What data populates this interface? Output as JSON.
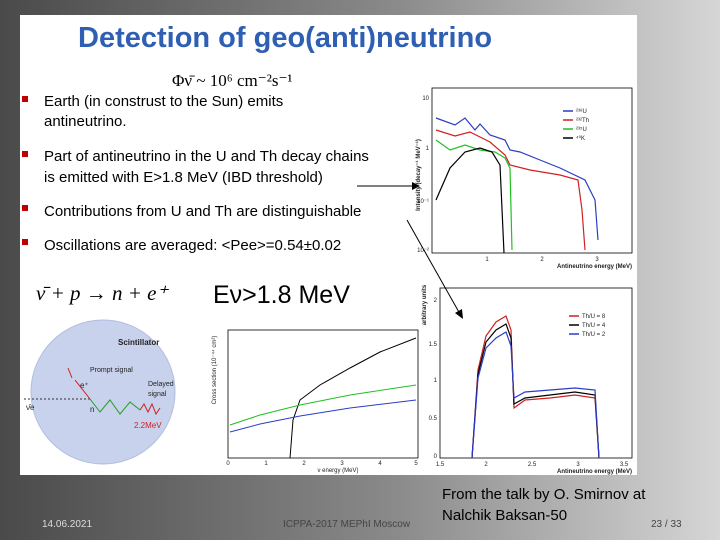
{
  "title": "Detection of geo(anti)neutrino",
  "flux_formula": "Φν̄ ~ 10⁶ cm⁻²s⁻¹",
  "bullets": [
    [
      "Earth (in construst to the Sun) emits",
      "antineutrino."
    ],
    [
      "Part of antineutrino in the U and Th decay chains",
      "is emitted with E>1.8 MeV (IBD threshold)"
    ],
    [
      "Contributions from U and Th  are distinguishable"
    ],
    [
      "Oscillations are averaged: <Pee>=0.54±0.02"
    ]
  ],
  "reaction": "ν̄ + p → n + e⁺",
  "threshold": "Eν>1.8 MeV",
  "spectrum_plot": {
    "y_label": "Intensity (decay⁻¹ MeV⁻¹)",
    "x_label": "Antineutrino energy (MeV)",
    "legend": [
      "²³⁸U",
      "²³²Th",
      "²³⁵U",
      "⁴⁰K"
    ],
    "yticks": [
      "10",
      "1",
      "10⁻¹",
      "10⁻²"
    ],
    "xticks": [
      "1",
      "2",
      "3"
    ]
  },
  "ratio_plot": {
    "y_label": "arbitrary units",
    "x_label": "Antineutrino energy (MeV)",
    "legend": [
      "Th/U = 8",
      "Th/U = 4",
      "Th/U = 2"
    ],
    "yticks": [
      "2",
      "1.5",
      "1",
      "0.5",
      "0"
    ],
    "xticks": [
      "1.5",
      "2",
      "2.5",
      "3",
      "3.5"
    ]
  },
  "detector": {
    "label": "Scintillator",
    "prompt": "Prompt signal",
    "delayed": [
      "Delayed",
      "signal"
    ],
    "gamma": "2.2MeV",
    "positron": "e⁺",
    "neutron": "n",
    "antineutrino": "ν̄e"
  },
  "cross_section_plot": {
    "y_label": "Cross section (10⁻⁴⁴ cm²)",
    "x_label": "ν energy (MeV)",
    "xticks": [
      "0",
      "1",
      "2",
      "3",
      "4",
      "5"
    ]
  },
  "footer": {
    "date": "14.06.2021",
    "conference": "ICPPA-2017 MEPhI Moscow",
    "credit": [
      "From the talk by O. Smirnov at",
      "Nalchik Baksan-50"
    ],
    "page": "23 / 33"
  }
}
